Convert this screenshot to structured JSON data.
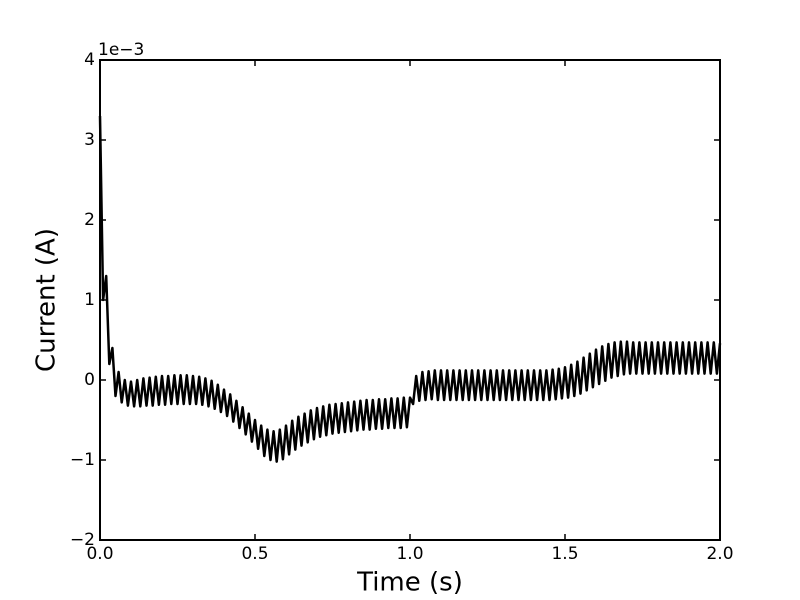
{
  "chart_data": {
    "type": "line",
    "xlabel": "Time (s)",
    "ylabel": "Current (A)",
    "offset_label": "1e−3",
    "color": "#000000",
    "xlim": [
      0,
      2
    ],
    "ylim": [
      -2,
      4
    ],
    "xticks": [
      {
        "value": 0,
        "label": "0.0"
      },
      0.5,
      {
        "value": 1,
        "label": "1.0"
      },
      1.5,
      {
        "value": 2,
        "label": "2.0"
      }
    ],
    "yticks": [
      {
        "value": -2,
        "label": "−2"
      },
      {
        "value": -1,
        "label": "−1"
      },
      0,
      1,
      2,
      3,
      4
    ],
    "x": [
      0,
      0.01,
      0.02,
      0.03,
      0.04,
      0.05,
      0.06,
      0.07,
      0.08,
      0.09,
      0.1,
      0.11,
      0.12,
      0.13,
      0.14,
      0.15,
      0.16,
      0.17,
      0.18,
      0.19,
      0.2,
      0.21,
      0.22,
      0.23,
      0.24,
      0.25,
      0.26,
      0.27,
      0.28,
      0.29,
      0.3,
      0.31,
      0.32,
      0.33,
      0.34,
      0.35,
      0.36,
      0.37,
      0.38,
      0.39,
      0.4,
      0.41,
      0.42,
      0.43,
      0.44,
      0.45,
      0.46,
      0.47,
      0.48,
      0.49,
      0.5,
      0.51,
      0.52,
      0.53,
      0.54,
      0.55,
      0.56,
      0.57,
      0.58,
      0.59,
      0.6,
      0.61,
      0.62,
      0.63,
      0.64,
      0.65,
      0.66,
      0.67,
      0.68,
      0.69,
      0.7,
      0.71,
      0.72,
      0.73,
      0.74,
      0.75,
      0.76,
      0.77,
      0.78,
      0.79,
      0.8,
      0.81,
      0.82,
      0.83,
      0.84,
      0.85,
      0.86,
      0.87,
      0.88,
      0.89,
      0.9,
      0.91,
      0.92,
      0.93,
      0.94,
      0.95,
      0.96,
      0.97,
      0.98,
      0.99,
      1,
      1.01,
      1.02,
      1.03,
      1.04,
      1.05,
      1.06,
      1.07,
      1.08,
      1.09,
      1.1,
      1.11,
      1.12,
      1.13,
      1.14,
      1.15,
      1.16,
      1.17,
      1.18,
      1.19,
      1.2,
      1.21,
      1.22,
      1.23,
      1.24,
      1.25,
      1.26,
      1.27,
      1.28,
      1.29,
      1.3,
      1.31,
      1.32,
      1.33,
      1.34,
      1.35,
      1.36,
      1.37,
      1.38,
      1.39,
      1.4,
      1.41,
      1.42,
      1.43,
      1.44,
      1.45,
      1.46,
      1.47,
      1.48,
      1.49,
      1.5,
      1.51,
      1.52,
      1.53,
      1.54,
      1.55,
      1.56,
      1.57,
      1.58,
      1.59,
      1.6,
      1.61,
      1.62,
      1.63,
      1.64,
      1.65,
      1.66,
      1.67,
      1.68,
      1.69,
      1.7,
      1.71,
      1.72,
      1.73,
      1.74,
      1.75,
      1.76,
      1.77,
      1.78,
      1.79,
      1.8,
      1.81,
      1.82,
      1.83,
      1.84,
      1.85,
      1.86,
      1.87,
      1.88,
      1.89,
      1.9,
      1.91,
      1.92,
      1.93,
      1.94,
      1.95,
      1.96,
      1.97,
      1.98,
      1.99,
      2
    ],
    "values": [
      3.3,
      1.0,
      1.3,
      0.2,
      0.4,
      -0.2,
      0.1,
      -0.28,
      0.0,
      -0.32,
      -0.02,
      -0.33,
      0.0,
      -0.33,
      0.02,
      -0.32,
      0.03,
      -0.32,
      0.04,
      -0.31,
      0.05,
      -0.31,
      0.05,
      -0.3,
      0.06,
      -0.3,
      0.06,
      -0.3,
      0.06,
      -0.3,
      0.05,
      -0.3,
      0.04,
      -0.31,
      0.02,
      -0.33,
      -0.01,
      -0.36,
      -0.06,
      -0.4,
      -0.12,
      -0.45,
      -0.18,
      -0.52,
      -0.26,
      -0.6,
      -0.34,
      -0.68,
      -0.42,
      -0.77,
      -0.5,
      -0.86,
      -0.57,
      -0.95,
      -0.62,
      -1.0,
      -0.64,
      -1.02,
      -0.62,
      -0.99,
      -0.57,
      -0.93,
      -0.51,
      -0.87,
      -0.46,
      -0.82,
      -0.42,
      -0.78,
      -0.38,
      -0.74,
      -0.35,
      -0.71,
      -0.33,
      -0.69,
      -0.31,
      -0.67,
      -0.3,
      -0.66,
      -0.29,
      -0.65,
      -0.28,
      -0.64,
      -0.27,
      -0.63,
      -0.26,
      -0.62,
      -0.25,
      -0.62,
      -0.25,
      -0.61,
      -0.24,
      -0.61,
      -0.24,
      -0.6,
      -0.23,
      -0.6,
      -0.23,
      -0.6,
      -0.22,
      -0.59,
      -0.22,
      -0.3,
      0.05,
      -0.26,
      0.1,
      -0.25,
      0.11,
      -0.24,
      0.12,
      -0.25,
      0.12,
      -0.25,
      0.12,
      -0.25,
      0.12,
      -0.25,
      0.12,
      -0.25,
      0.12,
      -0.25,
      0.12,
      -0.25,
      0.12,
      -0.25,
      0.12,
      -0.25,
      0.12,
      -0.25,
      0.12,
      -0.25,
      0.12,
      -0.25,
      0.12,
      -0.25,
      0.12,
      -0.25,
      0.12,
      -0.25,
      0.12,
      -0.25,
      0.12,
      -0.25,
      0.12,
      -0.25,
      0.12,
      -0.25,
      0.13,
      -0.24,
      0.14,
      -0.23,
      0.16,
      -0.22,
      0.19,
      -0.2,
      0.23,
      -0.17,
      0.28,
      -0.13,
      0.33,
      -0.09,
      0.38,
      -0.05,
      0.42,
      -0.01,
      0.45,
      0.03,
      0.47,
      0.05,
      0.48,
      0.07,
      0.48,
      0.08,
      0.47,
      0.08,
      0.47,
      0.08,
      0.47,
      0.08,
      0.47,
      0.08,
      0.47,
      0.08,
      0.47,
      0.08,
      0.47,
      0.08,
      0.47,
      0.08,
      0.47,
      0.08,
      0.47,
      0.08,
      0.47,
      0.08,
      0.47,
      0.08,
      0.47,
      0.08,
      0.47,
      0.08,
      0.46
    ]
  }
}
